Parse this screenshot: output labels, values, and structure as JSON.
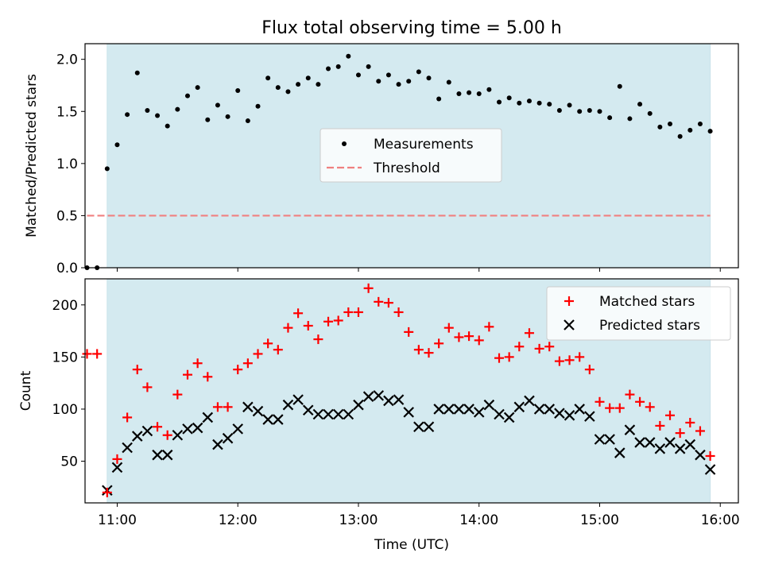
{
  "title": "Flux total observing time = 5.00 h",
  "xlabel": "Time (UTC)",
  "xticks": [
    "11:00",
    "12:00",
    "13:00",
    "14:00",
    "15:00",
    "16:00"
  ],
  "colors": {
    "span": "#d4eaf0",
    "measure": "#000000",
    "threshold": "#f08080",
    "matched": "#ff0000",
    "predicted": "#000000"
  },
  "chart_data": [
    {
      "type": "scatter",
      "ylabel": "Matched/Predicted stars",
      "ylim": [
        0,
        2.15
      ],
      "yticks": [
        "0.0",
        "0.5",
        "1.0",
        "1.5",
        "2.0"
      ],
      "xlim": [
        "10:44",
        "16:09"
      ],
      "observing_span": [
        "10:55",
        "15:55"
      ],
      "threshold": {
        "value": 0.5,
        "x": [
          "10:45",
          "15:55"
        ]
      },
      "legend": {
        "placement": "center",
        "entries": [
          "Measurements",
          "Threshold"
        ]
      },
      "series": [
        {
          "name": "Measurements",
          "x": [
            "10:45",
            "10:50",
            "10:55",
            "11:00",
            "11:05",
            "11:10",
            "11:15",
            "11:20",
            "11:25",
            "11:30",
            "11:35",
            "11:40",
            "11:45",
            "11:50",
            "11:55",
            "12:00",
            "12:05",
            "12:10",
            "12:15",
            "12:20",
            "12:25",
            "12:30",
            "12:35",
            "12:40",
            "12:45",
            "12:50",
            "12:55",
            "13:00",
            "13:05",
            "13:10",
            "13:15",
            "13:20",
            "13:25",
            "13:30",
            "13:35",
            "13:40",
            "13:45",
            "13:50",
            "13:55",
            "14:00",
            "14:05",
            "14:10",
            "14:15",
            "14:20",
            "14:25",
            "14:30",
            "14:35",
            "14:40",
            "14:45",
            "14:50",
            "14:55",
            "15:00",
            "15:05",
            "15:10",
            "15:15",
            "15:20",
            "15:25",
            "15:30",
            "15:35",
            "15:40",
            "15:45",
            "15:50",
            "15:55"
          ],
          "y": [
            0.0,
            0.0,
            0.95,
            1.18,
            1.47,
            1.87,
            1.51,
            1.46,
            1.36,
            1.52,
            1.65,
            1.73,
            1.42,
            1.56,
            1.45,
            1.7,
            1.41,
            1.55,
            1.82,
            1.73,
            1.69,
            1.76,
            1.82,
            1.76,
            1.91,
            1.93,
            2.03,
            1.85,
            1.93,
            1.79,
            1.85,
            1.76,
            1.79,
            1.88,
            1.82,
            1.62,
            1.78,
            1.67,
            1.68,
            1.67,
            1.71,
            1.59,
            1.63,
            1.58,
            1.6,
            1.58,
            1.57,
            1.51,
            1.56,
            1.5,
            1.51,
            1.5,
            1.44,
            1.74,
            1.43,
            1.57,
            1.48,
            1.35,
            1.38,
            1.26,
            1.32,
            1.38,
            1.31
          ]
        }
      ]
    },
    {
      "type": "scatter",
      "ylabel": "Count",
      "ylim": [
        10,
        225
      ],
      "yticks": [
        "50",
        "100",
        "150",
        "200"
      ],
      "xlim": [
        "10:44",
        "16:09"
      ],
      "observing_span": [
        "10:55",
        "15:55"
      ],
      "legend": {
        "placement": "top-right",
        "entries": [
          "Matched stars",
          "Predicted stars"
        ]
      },
      "series": [
        {
          "name": "Matched stars",
          "x": [
            "10:45",
            "10:50",
            "10:55",
            "11:00",
            "11:05",
            "11:10",
            "11:15",
            "11:20",
            "11:25",
            "11:30",
            "11:35",
            "11:40",
            "11:45",
            "11:50",
            "11:55",
            "12:00",
            "12:05",
            "12:10",
            "12:15",
            "12:20",
            "12:25",
            "12:30",
            "12:35",
            "12:40",
            "12:45",
            "12:50",
            "12:55",
            "13:00",
            "13:05",
            "13:10",
            "13:15",
            "13:20",
            "13:25",
            "13:30",
            "13:35",
            "13:40",
            "13:45",
            "13:50",
            "13:55",
            "14:00",
            "14:05",
            "14:10",
            "14:15",
            "14:20",
            "14:25",
            "14:30",
            "14:35",
            "14:40",
            "14:45",
            "14:50",
            "14:55",
            "15:00",
            "15:05",
            "15:10",
            "15:15",
            "15:20",
            "15:25",
            "15:30",
            "15:35",
            "15:40",
            "15:45",
            "15:50",
            "15:55"
          ],
          "y": [
            153,
            153,
            20,
            52,
            92,
            138,
            121,
            83,
            75,
            114,
            133,
            144,
            131,
            102,
            102,
            138,
            144,
            153,
            163,
            157,
            178,
            192,
            180,
            167,
            184,
            185,
            193,
            193,
            216,
            203,
            202,
            193,
            174,
            157,
            154,
            163,
            178,
            169,
            170,
            166,
            179,
            149,
            150,
            160,
            173,
            158,
            160,
            146,
            147,
            150,
            138,
            107,
            101,
            101,
            114,
            107,
            102,
            84,
            94,
            77,
            87,
            79,
            55
          ]
        },
        {
          "name": "Predicted stars",
          "x": [
            "10:55",
            "11:00",
            "11:05",
            "11:10",
            "11:15",
            "11:20",
            "11:25",
            "11:30",
            "11:35",
            "11:40",
            "11:45",
            "11:50",
            "11:55",
            "12:00",
            "12:05",
            "12:10",
            "12:15",
            "12:20",
            "12:25",
            "12:30",
            "12:35",
            "12:40",
            "12:45",
            "12:50",
            "12:55",
            "13:00",
            "13:05",
            "13:10",
            "13:15",
            "13:20",
            "13:25",
            "13:30",
            "13:35",
            "13:40",
            "13:45",
            "13:50",
            "13:55",
            "14:00",
            "14:05",
            "14:10",
            "14:15",
            "14:20",
            "14:25",
            "14:30",
            "14:35",
            "14:40",
            "14:45",
            "14:50",
            "14:55",
            "15:00",
            "15:05",
            "15:10",
            "15:15",
            "15:20",
            "15:25",
            "15:30",
            "15:35",
            "15:40",
            "15:45",
            "15:50",
            "15:55"
          ],
          "y": [
            22,
            44,
            63,
            74,
            79,
            56,
            56,
            75,
            81,
            82,
            92,
            66,
            72,
            81,
            102,
            98,
            90,
            90,
            104,
            109,
            99,
            95,
            95,
            95,
            95,
            104,
            112,
            113,
            108,
            109,
            97,
            83,
            83,
            100,
            100,
            100,
            100,
            97,
            104,
            95,
            92,
            102,
            108,
            100,
            100,
            96,
            94,
            100,
            93,
            71,
            71,
            58,
            80,
            68,
            68,
            62,
            68,
            62,
            66,
            56,
            42
          ]
        }
      ]
    }
  ]
}
